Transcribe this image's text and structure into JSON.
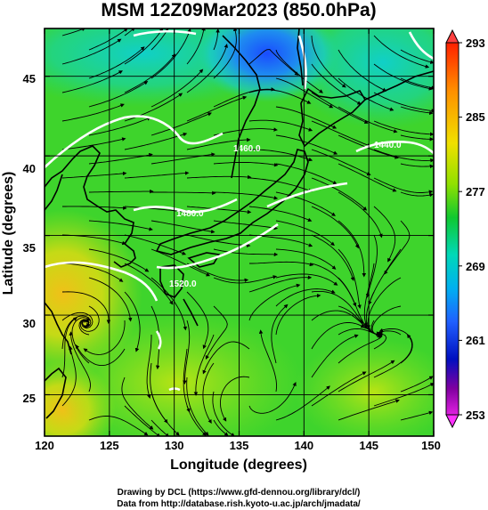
{
  "figure": {
    "title": "MSM 12Z09Mar2023 (850.0hPa)",
    "xlabel": "Longitude (degrees)",
    "ylabel": "Latitude  (degrees)",
    "credit_line1": "Drawing by DCL (https://www.gfd-dennou.org/library/dcl/)",
    "credit_line2": "Data from http://database.rish.kyoto-u.ac.jp/arch/jmadata/"
  },
  "map": {
    "lon_range": [
      120,
      150
    ],
    "lat_range": [
      22.4,
      48
    ],
    "x_ticks": [
      "120",
      "125",
      "130",
      "135",
      "140",
      "145",
      "150"
    ],
    "y_ticks": [
      "25",
      "30",
      "35",
      "40",
      "45"
    ],
    "grid": true,
    "contour_labels": [
      "1460.0",
      "1440.0",
      "1480.0",
      "1520.0"
    ]
  },
  "colorbar": {
    "labels": [
      "293",
      "285",
      "277",
      "269",
      "261",
      "253"
    ],
    "colors": [
      "#ff1a00",
      "#ff8c00",
      "#e6e600",
      "#7ee000",
      "#10c830",
      "#00d8c8",
      "#00a8f0",
      "#2060ff",
      "#0010c0",
      "#8000a0",
      "#e020e0"
    ]
  }
}
